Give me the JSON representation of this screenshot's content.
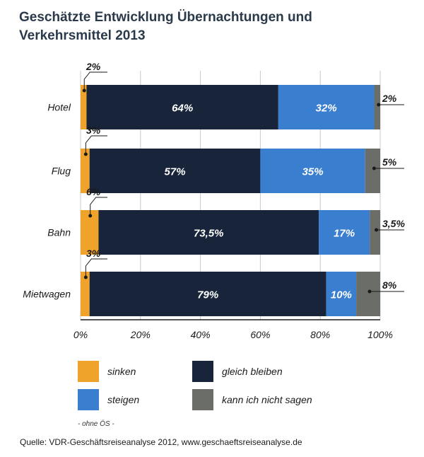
{
  "title_line1": "Geschätzte Entwicklung Übernachtungen und",
  "title_line2": "Verkehrsmittel 2013",
  "chart_data": {
    "type": "bar",
    "orientation": "horizontal",
    "stacked": true,
    "categories": [
      "Hotel",
      "Flug",
      "Bahn",
      "Mietwagen"
    ],
    "series": [
      {
        "name": "sinken",
        "color": "#f0a32b",
        "values": [
          2,
          3,
          6,
          3
        ],
        "labels": [
          "2%",
          "3%",
          "6%",
          "3%"
        ]
      },
      {
        "name": "gleich bleiben",
        "color": "#17243a",
        "values": [
          64,
          57,
          73.5,
          79
        ],
        "labels": [
          "64%",
          "57%",
          "73,5%",
          "79%"
        ]
      },
      {
        "name": "steigen",
        "color": "#3a7ed0",
        "values": [
          32,
          35,
          17,
          10
        ],
        "labels": [
          "32%",
          "35%",
          "17%",
          "10%"
        ]
      },
      {
        "name": "kann ich nicht sagen",
        "color": "#6b6e68",
        "values": [
          2,
          5,
          3.5,
          8
        ],
        "labels": [
          "2%",
          "5%",
          "3,5%",
          "8%"
        ]
      }
    ],
    "xlim": [
      0,
      100
    ],
    "xticks": [
      "0%",
      "20%",
      "40%",
      "60%",
      "80%",
      "100%"
    ],
    "grid": true,
    "legend": "bottom"
  },
  "legend_note": "- ohne ÖS -",
  "source": "Quelle: VDR-Geschäftsreiseanalyse 2012, www.geschaeftsreiseanalyse.de"
}
